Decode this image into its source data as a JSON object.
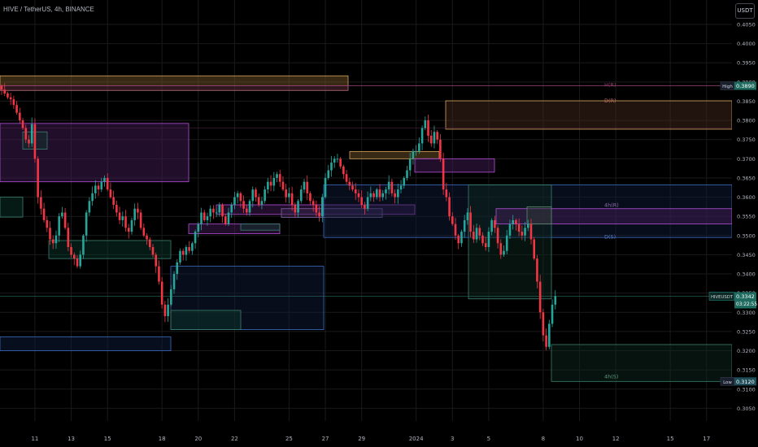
{
  "header": {
    "title": "HIVE / TetherUS, 4h, BINANCE",
    "currency": "USDT"
  },
  "colors": {
    "background": "#000000",
    "up": "#26a69a",
    "down": "#f23645",
    "text": "#b2b5be",
    "grid": "#1a1a1a"
  },
  "price_tags": {
    "high_label": "High",
    "high_value": "0.3890",
    "low_label": "Low",
    "low_value": "0.3120",
    "current_label": "HIVEUSDT",
    "current_value": "0.3342",
    "countdown": "03:22:55"
  },
  "zone_labels": [
    "H(R)",
    "D(R)",
    "4h(R)",
    "D(S)",
    "4h(S)"
  ],
  "chart_data": {
    "type": "candlestick",
    "title": "HIVE / TetherUS, 4h, BINANCE",
    "ylim": [
      0.3,
      0.405
    ],
    "y_ticks": [
      "0.4050",
      "0.4000",
      "0.3950",
      "0.3900",
      "0.3850",
      "0.3800",
      "0.3750",
      "0.3700",
      "0.3650",
      "0.3600",
      "0.3550",
      "0.3500",
      "0.3450",
      "0.3400",
      "0.3350",
      "0.3300",
      "0.3250",
      "0.3200",
      "0.3150",
      "0.3100",
      "0.3050",
      "0.3000"
    ],
    "x_ticks": [
      {
        "label": "11",
        "i": 11
      },
      {
        "label": "13",
        "i": 23
      },
      {
        "label": "15",
        "i": 35
      },
      {
        "label": "18",
        "i": 53
      },
      {
        "label": "20",
        "i": 65
      },
      {
        "label": "22",
        "i": 77
      },
      {
        "label": "25",
        "i": 95
      },
      {
        "label": "27",
        "i": 107
      },
      {
        "label": "29",
        "i": 119
      },
      {
        "label": "2024",
        "i": 137
      },
      {
        "label": "3",
        "i": 149
      },
      {
        "label": "5",
        "i": 161
      },
      {
        "label": "8",
        "i": 179
      },
      {
        "label": "10",
        "i": 191
      },
      {
        "label": "12",
        "i": 203
      },
      {
        "label": "15",
        "i": 221
      },
      {
        "label": "17",
        "i": 233
      }
    ],
    "closes": [
      0.388,
      0.387,
      0.386,
      0.3855,
      0.384,
      0.382,
      0.38,
      0.378,
      0.375,
      0.374,
      0.379,
      0.37,
      0.36,
      0.357,
      0.354,
      0.352,
      0.349,
      0.348,
      0.35,
      0.355,
      0.356,
      0.352,
      0.347,
      0.345,
      0.344,
      0.342,
      0.345,
      0.35,
      0.356,
      0.359,
      0.361,
      0.363,
      0.362,
      0.364,
      0.365,
      0.362,
      0.36,
      0.358,
      0.356,
      0.354,
      0.355,
      0.352,
      0.351,
      0.354,
      0.357,
      0.356,
      0.352,
      0.35,
      0.349,
      0.347,
      0.345,
      0.342,
      0.338,
      0.332,
      0.329,
      0.332,
      0.336,
      0.34,
      0.343,
      0.346,
      0.345,
      0.347,
      0.346,
      0.348,
      0.351,
      0.353,
      0.356,
      0.354,
      0.355,
      0.357,
      0.356,
      0.356,
      0.358,
      0.355,
      0.353,
      0.356,
      0.358,
      0.36,
      0.361,
      0.359,
      0.357,
      0.356,
      0.359,
      0.362,
      0.36,
      0.358,
      0.359,
      0.362,
      0.364,
      0.363,
      0.365,
      0.366,
      0.364,
      0.362,
      0.36,
      0.361,
      0.358,
      0.356,
      0.359,
      0.362,
      0.364,
      0.361,
      0.359,
      0.358,
      0.356,
      0.355,
      0.36,
      0.365,
      0.367,
      0.369,
      0.37,
      0.37,
      0.368,
      0.366,
      0.364,
      0.363,
      0.362,
      0.361,
      0.36,
      0.358,
      0.357,
      0.36,
      0.361,
      0.36,
      0.362,
      0.36,
      0.361,
      0.362,
      0.364,
      0.361,
      0.36,
      0.362,
      0.363,
      0.365,
      0.367,
      0.37,
      0.372,
      0.372,
      0.374,
      0.378,
      0.38,
      0.376,
      0.374,
      0.377,
      0.375,
      0.37,
      0.362,
      0.36,
      0.355,
      0.353,
      0.35,
      0.348,
      0.351,
      0.354,
      0.356,
      0.351,
      0.349,
      0.352,
      0.35,
      0.348,
      0.347,
      0.351,
      0.354,
      0.352,
      0.348,
      0.345,
      0.346,
      0.35,
      0.353,
      0.354,
      0.353,
      0.351,
      0.35,
      0.352,
      0.353,
      0.349,
      0.344,
      0.338,
      0.33,
      0.324,
      0.321,
      0.327,
      0.332,
      0.3342
    ]
  }
}
